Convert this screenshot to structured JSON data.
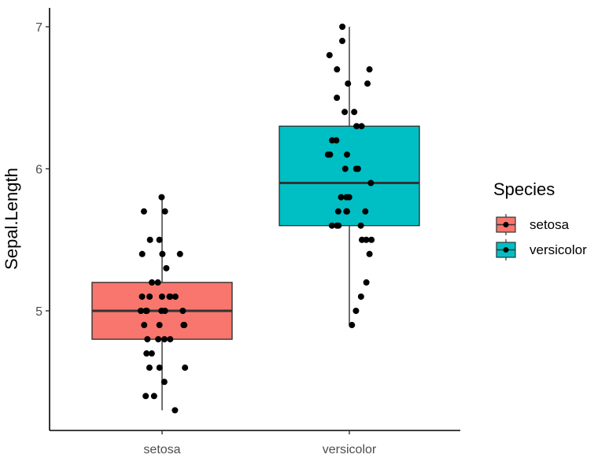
{
  "chart_data": {
    "type": "boxplot",
    "ylabel": "Sepal.Length",
    "xlabel": "",
    "ylim": [
      4.2,
      7.1
    ],
    "y_ticks": [
      5,
      6,
      7
    ],
    "categories": [
      "setosa",
      "versicolor"
    ],
    "grid": false,
    "legend_placement": "right",
    "legend": {
      "title": "Species",
      "entries": [
        "setosa",
        "versicolor"
      ]
    },
    "colors": {
      "setosa": "#F8766D",
      "versicolor": "#00BFC4",
      "points": "#000000",
      "box_outline": "#333333"
    },
    "series": [
      {
        "name": "setosa",
        "box": {
          "q1": 4.8,
          "median": 5.0,
          "q3": 5.2,
          "whisker_low": 4.3,
          "whisker_high": 5.8
        },
        "points": [
          5.8,
          5.7,
          5.7,
          5.5,
          5.5,
          5.4,
          5.4,
          5.4,
          5.3,
          5.2,
          5.2,
          5.1,
          5.1,
          5.1,
          5.1,
          5.1,
          5.1,
          5.0,
          5.0,
          5.0,
          5.0,
          5.0,
          5.0,
          4.9,
          4.9,
          4.9,
          4.9,
          4.8,
          4.8,
          4.8,
          4.8,
          4.7,
          4.7,
          4.6,
          4.6,
          4.6,
          4.5,
          4.4,
          4.4,
          4.3
        ]
      },
      {
        "name": "versicolor",
        "box": {
          "q1": 5.6,
          "median": 5.9,
          "q3": 6.3,
          "whisker_low": 4.9,
          "whisker_high": 7.0
        },
        "points": [
          7.0,
          6.9,
          6.8,
          6.7,
          6.7,
          6.6,
          6.6,
          6.5,
          6.4,
          6.4,
          6.3,
          6.3,
          6.2,
          6.2,
          6.1,
          6.1,
          6.1,
          6.0,
          6.0,
          6.0,
          5.9,
          5.8,
          5.8,
          5.8,
          5.7,
          5.7,
          5.7,
          5.7,
          5.7,
          5.6,
          5.6,
          5.6,
          5.6,
          5.5,
          5.5,
          5.5,
          5.4,
          5.2,
          5.1,
          5.0,
          4.9
        ]
      }
    ]
  }
}
